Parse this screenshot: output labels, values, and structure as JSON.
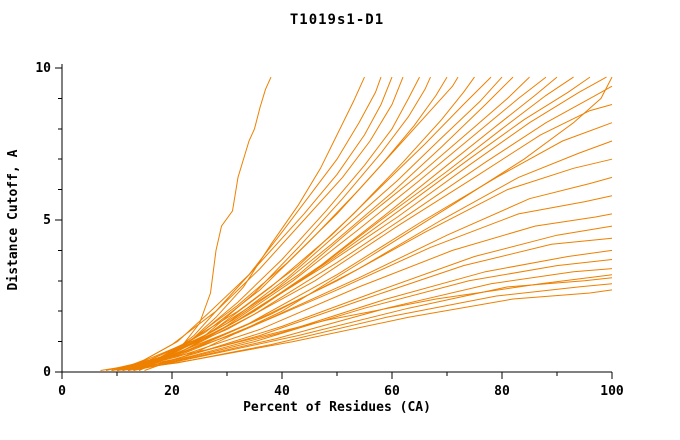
{
  "chart_data": {
    "type": "line",
    "title": "T1019s1-D1",
    "xlabel": "Percent of Residues (CA)",
    "ylabel": "Distance Cutoff, A",
    "xlim": [
      0,
      100
    ],
    "ylim": [
      0,
      10
    ],
    "x_ticks": [
      0,
      20,
      40,
      60,
      80,
      100
    ],
    "y_ticks": [
      0,
      5,
      10
    ],
    "x_minor_step": 10,
    "y_minor_step": 1,
    "grid": false,
    "legend": "none",
    "line_color": "#ee8000",
    "axis_color": "#000000",
    "background": "#ffffff",
    "series": [
      [
        [
          13,
          0.05
        ],
        [
          18,
          0.4
        ],
        [
          22,
          0.9
        ],
        [
          25,
          1.6
        ],
        [
          27,
          2.6
        ],
        [
          28,
          4.0
        ],
        [
          29,
          4.8
        ],
        [
          31,
          5.3
        ],
        [
          32,
          6.4
        ],
        [
          34,
          7.6
        ],
        [
          35,
          8.0
        ],
        [
          36,
          8.7
        ],
        [
          37,
          9.3
        ],
        [
          38,
          9.7
        ]
      ],
      [
        [
          12,
          0.05
        ],
        [
          16,
          0.3
        ],
        [
          22,
          0.8
        ],
        [
          28,
          1.8
        ],
        [
          33,
          2.8
        ],
        [
          38,
          4.2
        ],
        [
          43,
          5.5
        ],
        [
          47,
          6.7
        ],
        [
          50,
          7.8
        ],
        [
          53,
          8.9
        ],
        [
          55,
          9.7
        ]
      ],
      [
        [
          10,
          0.05
        ],
        [
          15,
          0.4
        ],
        [
          21,
          1.0
        ],
        [
          27,
          2.0
        ],
        [
          34,
          3.2
        ],
        [
          40,
          4.6
        ],
        [
          45,
          5.8
        ],
        [
          50,
          7.0
        ],
        [
          54,
          8.2
        ],
        [
          57,
          9.2
        ],
        [
          58,
          9.7
        ]
      ],
      [
        [
          14,
          0.05
        ],
        [
          19,
          0.5
        ],
        [
          24,
          1.2
        ],
        [
          30,
          2.4
        ],
        [
          37,
          3.8
        ],
        [
          44,
          5.2
        ],
        [
          50,
          6.5
        ],
        [
          55,
          7.8
        ],
        [
          58,
          8.8
        ],
        [
          60,
          9.7
        ]
      ],
      [
        [
          9,
          0.05
        ],
        [
          14,
          0.3
        ],
        [
          20,
          0.9
        ],
        [
          28,
          2.0
        ],
        [
          36,
          3.4
        ],
        [
          44,
          5.0
        ],
        [
          51,
          6.4
        ],
        [
          56,
          7.6
        ],
        [
          60,
          8.8
        ],
        [
          62,
          9.7
        ]
      ],
      [
        [
          11,
          0.05
        ],
        [
          17,
          0.4
        ],
        [
          24,
          1.1
        ],
        [
          32,
          2.3
        ],
        [
          40,
          3.7
        ],
        [
          48,
          5.3
        ],
        [
          55,
          6.8
        ],
        [
          60,
          8.0
        ],
        [
          63,
          9.0
        ],
        [
          65,
          9.7
        ]
      ],
      [
        [
          13,
          0.05
        ],
        [
          18,
          0.4
        ],
        [
          26,
          1.2
        ],
        [
          35,
          2.6
        ],
        [
          43,
          4.1
        ],
        [
          51,
          5.7
        ],
        [
          58,
          7.2
        ],
        [
          63,
          8.4
        ],
        [
          66,
          9.3
        ],
        [
          67,
          9.7
        ]
      ],
      [
        [
          10,
          0.05
        ],
        [
          16,
          0.4
        ],
        [
          23,
          1.0
        ],
        [
          32,
          2.2
        ],
        [
          41,
          3.6
        ],
        [
          50,
          5.2
        ],
        [
          58,
          6.8
        ],
        [
          64,
          8.1
        ],
        [
          68,
          9.1
        ],
        [
          70,
          9.7
        ]
      ],
      [
        [
          12,
          0.05
        ],
        [
          18,
          0.5
        ],
        [
          26,
          1.3
        ],
        [
          36,
          2.7
        ],
        [
          45,
          4.3
        ],
        [
          54,
          6.0
        ],
        [
          61,
          7.4
        ],
        [
          67,
          8.6
        ],
        [
          71,
          9.4
        ],
        [
          72,
          9.7
        ]
      ],
      [
        [
          8,
          0.05
        ],
        [
          14,
          0.3
        ],
        [
          22,
          0.9
        ],
        [
          32,
          2.0
        ],
        [
          43,
          3.5
        ],
        [
          53,
          5.2
        ],
        [
          62,
          6.9
        ],
        [
          69,
          8.3
        ],
        [
          73,
          9.2
        ],
        [
          75,
          9.7
        ]
      ],
      [
        [
          11,
          0.05
        ],
        [
          18,
          0.5
        ],
        [
          27,
          1.3
        ],
        [
          38,
          2.8
        ],
        [
          49,
          4.5
        ],
        [
          58,
          6.1
        ],
        [
          66,
          7.5
        ],
        [
          73,
          8.8
        ],
        [
          78,
          9.7
        ]
      ],
      [
        [
          13,
          0.05
        ],
        [
          20,
          0.6
        ],
        [
          30,
          1.6
        ],
        [
          41,
          3.1
        ],
        [
          51,
          4.7
        ],
        [
          61,
          6.3
        ],
        [
          69,
          7.7
        ],
        [
          76,
          8.9
        ],
        [
          80,
          9.7
        ]
      ],
      [
        [
          9,
          0.05
        ],
        [
          16,
          0.4
        ],
        [
          26,
          1.2
        ],
        [
          38,
          2.6
        ],
        [
          49,
          4.2
        ],
        [
          60,
          5.9
        ],
        [
          69,
          7.4
        ],
        [
          77,
          8.8
        ],
        [
          82,
          9.7
        ]
      ],
      [
        [
          12,
          0.05
        ],
        [
          20,
          0.6
        ],
        [
          31,
          1.7
        ],
        [
          43,
          3.2
        ],
        [
          54,
          4.9
        ],
        [
          65,
          6.5
        ],
        [
          74,
          7.9
        ],
        [
          81,
          9.0
        ],
        [
          85,
          9.7
        ]
      ],
      [
        [
          10,
          0.05
        ],
        [
          18,
          0.5
        ],
        [
          29,
          1.4
        ],
        [
          42,
          3.0
        ],
        [
          54,
          4.7
        ],
        [
          65,
          6.3
        ],
        [
          75,
          7.8
        ],
        [
          83,
          9.0
        ],
        [
          88,
          9.7
        ]
      ],
      [
        [
          14,
          0.05
        ],
        [
          22,
          0.7
        ],
        [
          34,
          1.9
        ],
        [
          47,
          3.5
        ],
        [
          59,
          5.2
        ],
        [
          70,
          6.8
        ],
        [
          79,
          8.1
        ],
        [
          86,
          9.1
        ],
        [
          90,
          9.7
        ]
      ],
      [
        [
          11,
          0.05
        ],
        [
          19,
          0.5
        ],
        [
          31,
          1.6
        ],
        [
          45,
          3.2
        ],
        [
          58,
          5.0
        ],
        [
          70,
          6.6
        ],
        [
          80,
          8.0
        ],
        [
          88,
          9.1
        ],
        [
          93,
          9.7
        ]
      ],
      [
        [
          13,
          0.05
        ],
        [
          22,
          0.7
        ],
        [
          35,
          2.0
        ],
        [
          49,
          3.7
        ],
        [
          62,
          5.4
        ],
        [
          74,
          7.0
        ],
        [
          84,
          8.3
        ],
        [
          92,
          9.2
        ],
        [
          96,
          9.7
        ]
      ],
      [
        [
          10,
          0.05
        ],
        [
          19,
          0.5
        ],
        [
          32,
          1.7
        ],
        [
          47,
          3.4
        ],
        [
          61,
          5.1
        ],
        [
          74,
          6.8
        ],
        [
          85,
          8.2
        ],
        [
          94,
          9.2
        ],
        [
          99,
          9.7
        ]
      ],
      [
        [
          15,
          0.05
        ],
        [
          25,
          0.7
        ],
        [
          40,
          2.0
        ],
        [
          56,
          3.8
        ],
        [
          71,
          5.5
        ],
        [
          84,
          7.0
        ],
        [
          93,
          8.2
        ],
        [
          98,
          9.0
        ],
        [
          100,
          9.7
        ]
      ],
      [
        [
          12,
          0.05
        ],
        [
          21,
          0.6
        ],
        [
          35,
          1.9
        ],
        [
          50,
          3.6
        ],
        [
          64,
          5.3
        ],
        [
          77,
          6.9
        ],
        [
          88,
          8.2
        ],
        [
          97,
          9.1
        ],
        [
          100,
          9.4
        ]
      ],
      [
        [
          9,
          0.05
        ],
        [
          17,
          0.4
        ],
        [
          30,
          1.4
        ],
        [
          46,
          3.0
        ],
        [
          61,
          4.8
        ],
        [
          75,
          6.4
        ],
        [
          87,
          7.8
        ],
        [
          96,
          8.6
        ],
        [
          100,
          8.8
        ]
      ],
      [
        [
          11,
          0.05
        ],
        [
          20,
          0.5
        ],
        [
          34,
          1.6
        ],
        [
          50,
          3.2
        ],
        [
          65,
          4.9
        ],
        [
          79,
          6.4
        ],
        [
          91,
          7.6
        ],
        [
          100,
          8.2
        ]
      ],
      [
        [
          13,
          0.05
        ],
        [
          23,
          0.7
        ],
        [
          38,
          1.9
        ],
        [
          54,
          3.4
        ],
        [
          69,
          5.0
        ],
        [
          83,
          6.4
        ],
        [
          94,
          7.2
        ],
        [
          100,
          7.6
        ]
      ],
      [
        [
          10,
          0.05
        ],
        [
          19,
          0.5
        ],
        [
          33,
          1.5
        ],
        [
          50,
          3.0
        ],
        [
          66,
          4.6
        ],
        [
          81,
          6.0
        ],
        [
          93,
          6.7
        ],
        [
          100,
          7.0
        ]
      ],
      [
        [
          12,
          0.05
        ],
        [
          22,
          0.6
        ],
        [
          37,
          1.7
        ],
        [
          54,
          3.1
        ],
        [
          70,
          4.5
        ],
        [
          85,
          5.7
        ],
        [
          96,
          6.2
        ],
        [
          100,
          6.4
        ]
      ],
      [
        [
          9,
          0.05
        ],
        [
          18,
          0.4
        ],
        [
          32,
          1.3
        ],
        [
          50,
          2.7
        ],
        [
          67,
          4.1
        ],
        [
          83,
          5.2
        ],
        [
          95,
          5.6
        ],
        [
          100,
          5.8
        ]
      ],
      [
        [
          11,
          0.05
        ],
        [
          21,
          0.5
        ],
        [
          36,
          1.4
        ],
        [
          54,
          2.8
        ],
        [
          71,
          4.0
        ],
        [
          86,
          4.8
        ],
        [
          97,
          5.1
        ],
        [
          100,
          5.2
        ]
      ],
      [
        [
          13,
          0.05
        ],
        [
          24,
          0.6
        ],
        [
          40,
          1.5
        ],
        [
          58,
          2.7
        ],
        [
          75,
          3.8
        ],
        [
          90,
          4.5
        ],
        [
          100,
          4.8
        ]
      ],
      [
        [
          10,
          0.05
        ],
        [
          20,
          0.4
        ],
        [
          36,
          1.2
        ],
        [
          55,
          2.4
        ],
        [
          73,
          3.5
        ],
        [
          89,
          4.2
        ],
        [
          100,
          4.4
        ]
      ],
      [
        [
          12,
          0.05
        ],
        [
          23,
          0.5
        ],
        [
          40,
          1.3
        ],
        [
          59,
          2.4
        ],
        [
          77,
          3.3
        ],
        [
          92,
          3.8
        ],
        [
          100,
          4.0
        ]
      ],
      [
        [
          9,
          0.05
        ],
        [
          19,
          0.3
        ],
        [
          35,
          1.0
        ],
        [
          55,
          2.1
        ],
        [
          74,
          3.0
        ],
        [
          90,
          3.5
        ],
        [
          100,
          3.7
        ]
      ],
      [
        [
          11,
          0.05
        ],
        [
          22,
          0.4
        ],
        [
          39,
          1.1
        ],
        [
          59,
          2.1
        ],
        [
          78,
          2.9
        ],
        [
          93,
          3.3
        ],
        [
          100,
          3.4
        ]
      ],
      [
        [
          13,
          0.05
        ],
        [
          25,
          0.5
        ],
        [
          43,
          1.2
        ],
        [
          63,
          2.1
        ],
        [
          81,
          2.8
        ],
        [
          95,
          3.0
        ],
        [
          100,
          3.1
        ]
      ],
      [
        [
          10,
          0.05
        ],
        [
          21,
          0.3
        ],
        [
          38,
          0.9
        ],
        [
          59,
          1.8
        ],
        [
          79,
          2.5
        ],
        [
          94,
          2.8
        ],
        [
          100,
          2.9
        ]
      ],
      [
        [
          12,
          0.05
        ],
        [
          24,
          0.4
        ],
        [
          42,
          1.0
        ],
        [
          63,
          1.8
        ],
        [
          82,
          2.4
        ],
        [
          96,
          2.6
        ],
        [
          100,
          2.7
        ]
      ],
      [
        [
          7,
          0.05
        ],
        [
          14,
          0.25
        ],
        [
          28,
          0.8
        ],
        [
          48,
          1.7
        ],
        [
          68,
          2.4
        ],
        [
          87,
          2.9
        ],
        [
          100,
          3.2
        ]
      ]
    ]
  }
}
